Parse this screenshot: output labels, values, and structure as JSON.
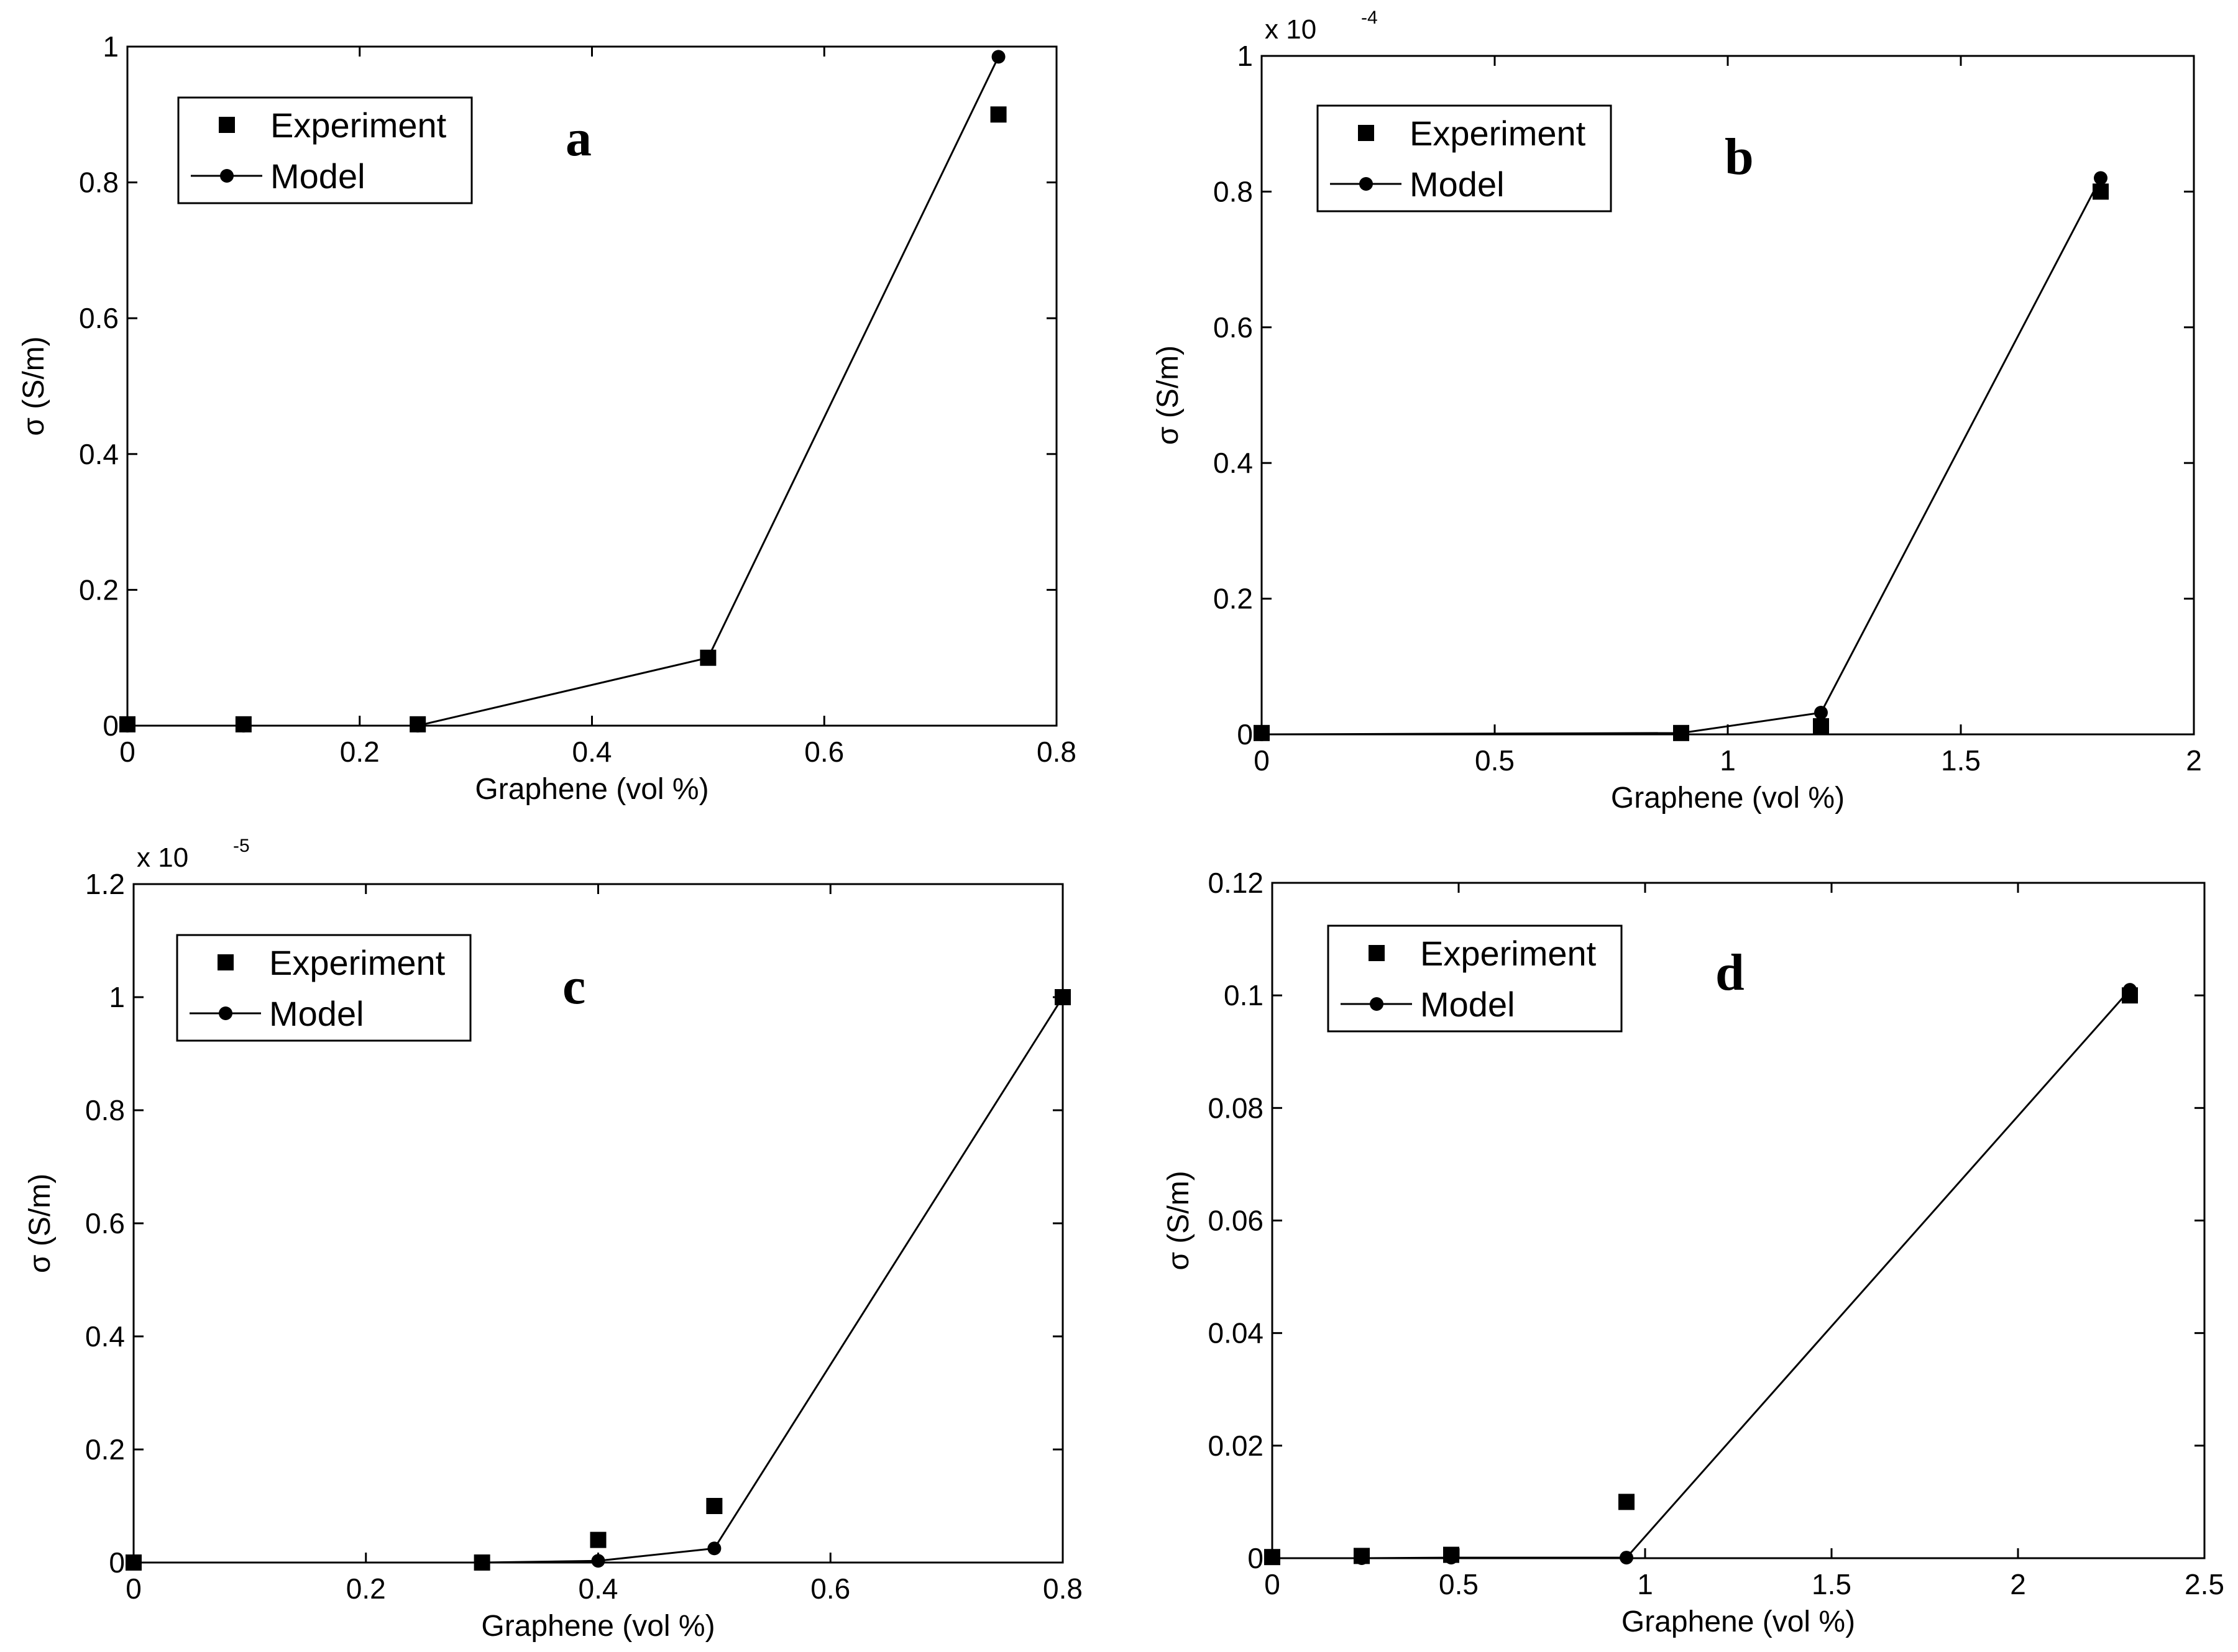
{
  "colors": {
    "ink": "#000000",
    "background": "#ffffff"
  },
  "chart_data": [
    {
      "type": "scatter",
      "panel_label": "a",
      "xlabel": "Graphene (vol %)",
      "ylabel": "σ (S/m)",
      "xlim": [
        0,
        0.8
      ],
      "ylim": [
        0,
        1
      ],
      "xticks": [
        "0",
        "0.2",
        "0.4",
        "0.6",
        "0.8"
      ],
      "yticks": [
        "0",
        "0.2",
        "0.4",
        "0.6",
        "0.8",
        "1"
      ],
      "multiplier": {
        "base": "",
        "exp": ""
      },
      "legend": {
        "position": "top-left",
        "entries": [
          "Experiment",
          "Model"
        ]
      },
      "series": [
        {
          "name": "Experiment",
          "marker": "square",
          "x": [
            0,
            0.1,
            0.25,
            0.5,
            0.75
          ],
          "y": [
            0.002,
            0.002,
            0.002,
            0.1,
            0.9
          ]
        },
        {
          "name": "Model",
          "marker": "circle-line",
          "x": [
            0,
            0.1,
            0.25,
            0.5,
            0.75
          ],
          "y": [
            0,
            0,
            0,
            0.1,
            0.985
          ]
        }
      ]
    },
    {
      "type": "scatter",
      "panel_label": "b",
      "xlabel": "Graphene (vol %)",
      "ylabel": "σ (S/m)",
      "xlim": [
        0,
        2
      ],
      "ylim": [
        0,
        1
      ],
      "xticks": [
        "0",
        "0.5",
        "1",
        "1.5",
        "2"
      ],
      "yticks": [
        "0",
        "0.2",
        "0.4",
        "0.6",
        "0.8",
        "1"
      ],
      "multiplier": {
        "base": "x 10",
        "exp": "-4"
      },
      "legend": {
        "position": "top-left",
        "entries": [
          "Experiment",
          "Model"
        ]
      },
      "series": [
        {
          "name": "Experiment",
          "marker": "square",
          "x": [
            0,
            0.9,
            1.2,
            1.8
          ],
          "y": [
            0.002,
            0.002,
            0.012,
            0.8
          ]
        },
        {
          "name": "Model",
          "marker": "circle-line",
          "x": [
            0,
            0.9,
            1.2,
            1.8
          ],
          "y": [
            0,
            0.002,
            0.032,
            0.82
          ]
        }
      ]
    },
    {
      "type": "scatter",
      "panel_label": "c",
      "xlabel": "Graphene (vol %)",
      "ylabel": "σ (S/m)",
      "xlim": [
        0,
        0.8
      ],
      "ylim": [
        0,
        1.2
      ],
      "xticks": [
        "0",
        "0.2",
        "0.4",
        "0.6",
        "0.8"
      ],
      "yticks": [
        "0",
        "0.2",
        "0.4",
        "0.6",
        "0.8",
        "1",
        "1.2"
      ],
      "multiplier": {
        "base": "x 10",
        "exp": "-5"
      },
      "legend": {
        "position": "top-left",
        "entries": [
          "Experiment",
          "Model"
        ]
      },
      "series": [
        {
          "name": "Experiment",
          "marker": "square",
          "x": [
            0,
            0.3,
            0.4,
            0.5,
            0.8
          ],
          "y": [
            0,
            0,
            0.04,
            0.1,
            1.0
          ]
        },
        {
          "name": "Model",
          "marker": "circle-line",
          "x": [
            0,
            0.3,
            0.4,
            0.5,
            0.8
          ],
          "y": [
            0,
            0,
            0.003,
            0.025,
            1.0
          ]
        }
      ]
    },
    {
      "type": "scatter",
      "panel_label": "d",
      "xlabel": "Graphene (vol %)",
      "ylabel": "σ (S/m)",
      "xlim": [
        0,
        2.5
      ],
      "ylim": [
        0,
        0.12
      ],
      "xticks": [
        "0",
        "0.5",
        "1",
        "1.5",
        "2",
        "2.5"
      ],
      "yticks": [
        "0",
        "0.02",
        "0.04",
        "0.06",
        "0.08",
        "0.1",
        "0.12"
      ],
      "multiplier": {
        "base": "",
        "exp": ""
      },
      "legend": {
        "position": "top-left",
        "entries": [
          "Experiment",
          "Model"
        ]
      },
      "series": [
        {
          "name": "Experiment",
          "marker": "square",
          "x": [
            0,
            0.24,
            0.48,
            0.95,
            2.3
          ],
          "y": [
            0.0002,
            0.0004,
            0.0006,
            0.01,
            0.1
          ]
        },
        {
          "name": "Model",
          "marker": "circle-line",
          "x": [
            0,
            0.24,
            0.48,
            0.95,
            2.3
          ],
          "y": [
            0,
            0,
            0.0001,
            0.0001,
            0.101
          ]
        }
      ]
    }
  ]
}
